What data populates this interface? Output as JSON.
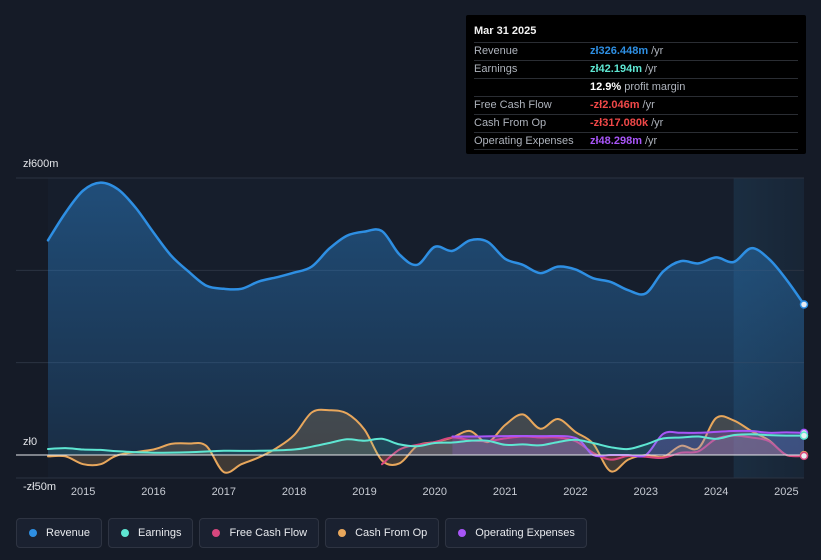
{
  "tooltip": {
    "date": "Mar 31 2025",
    "rows": [
      {
        "label": "Revenue",
        "value": "zł326.448m",
        "unit": "/yr",
        "color": "#2e8fe3"
      },
      {
        "label": "Earnings",
        "value": "zł42.194m",
        "unit": "/yr",
        "color": "#5ee6d2"
      },
      {
        "label": "",
        "value": "12.9%",
        "unit": "profit margin",
        "color": "#ffffff"
      },
      {
        "label": "Free Cash Flow",
        "value": "-zł2.046m",
        "unit": "/yr",
        "color": "#f04848"
      },
      {
        "label": "Cash From Op",
        "value": "-zł317.080k",
        "unit": "/yr",
        "color": "#f04848"
      },
      {
        "label": "Operating Expenses",
        "value": "zł48.298m",
        "unit": "/yr",
        "color": "#a855f7"
      }
    ]
  },
  "legend": [
    {
      "label": "Revenue",
      "color": "#2e8fe3"
    },
    {
      "label": "Earnings",
      "color": "#5ee6d2"
    },
    {
      "label": "Free Cash Flow",
      "color": "#d6477e"
    },
    {
      "label": "Cash From Op",
      "color": "#e8a75c"
    },
    {
      "label": "Operating Expenses",
      "color": "#a855f7"
    }
  ],
  "chart_data": {
    "type": "area",
    "title": "",
    "xlabel": "",
    "ylabel": "",
    "ylim": [
      -50,
      600
    ],
    "y_tick_labels": [
      "zł600m",
      "zł0",
      "-zł50m"
    ],
    "y_ticks": [
      600,
      0,
      -50
    ],
    "x_tick_labels": [
      "2015",
      "2016",
      "2017",
      "2018",
      "2019",
      "2020",
      "2021",
      "2022",
      "2023",
      "2024",
      "2025"
    ],
    "x_ticks": [
      2015,
      2016,
      2017,
      2018,
      2019,
      2020,
      2021,
      2022,
      2023,
      2024,
      2025
    ],
    "xlim": [
      2014.5,
      2025.25
    ],
    "highlight_start": 2024.25,
    "series": [
      {
        "name": "Revenue",
        "color": "#2e8fe3",
        "points": [
          [
            2014.5,
            465
          ],
          [
            2014.75,
            525
          ],
          [
            2015,
            573
          ],
          [
            2015.25,
            590
          ],
          [
            2015.5,
            575
          ],
          [
            2015.75,
            535
          ],
          [
            2016,
            482
          ],
          [
            2016.25,
            432
          ],
          [
            2016.5,
            397
          ],
          [
            2016.75,
            367
          ],
          [
            2017,
            360
          ],
          [
            2017.25,
            360
          ],
          [
            2017.5,
            376
          ],
          [
            2017.75,
            385
          ],
          [
            2018,
            395
          ],
          [
            2018.25,
            408
          ],
          [
            2018.5,
            447
          ],
          [
            2018.75,
            475
          ],
          [
            2019,
            484
          ],
          [
            2019.25,
            485
          ],
          [
            2019.5,
            434
          ],
          [
            2019.75,
            412
          ],
          [
            2020,
            451
          ],
          [
            2020.25,
            442
          ],
          [
            2020.5,
            465
          ],
          [
            2020.75,
            462
          ],
          [
            2021,
            425
          ],
          [
            2021.25,
            412
          ],
          [
            2021.5,
            394
          ],
          [
            2021.75,
            408
          ],
          [
            2022,
            402
          ],
          [
            2022.25,
            383
          ],
          [
            2022.5,
            375
          ],
          [
            2022.75,
            357
          ],
          [
            2023,
            350
          ],
          [
            2023.25,
            398
          ],
          [
            2023.5,
            420
          ],
          [
            2023.75,
            415
          ],
          [
            2024,
            428
          ],
          [
            2024.25,
            418
          ],
          [
            2024.5,
            448
          ],
          [
            2024.75,
            425
          ],
          [
            2025,
            380
          ],
          [
            2025.25,
            326
          ]
        ]
      },
      {
        "name": "Earnings",
        "color": "#5ee6d2",
        "points": [
          [
            2014.5,
            13
          ],
          [
            2014.75,
            15
          ],
          [
            2015,
            12
          ],
          [
            2015.25,
            11
          ],
          [
            2015.5,
            8
          ],
          [
            2016,
            5
          ],
          [
            2016.5,
            6
          ],
          [
            2017,
            9
          ],
          [
            2017.5,
            9
          ],
          [
            2018,
            12
          ],
          [
            2018.25,
            18
          ],
          [
            2018.5,
            26
          ],
          [
            2018.75,
            34
          ],
          [
            2019,
            31
          ],
          [
            2019.25,
            35
          ],
          [
            2019.5,
            23
          ],
          [
            2019.75,
            19
          ],
          [
            2020,
            26
          ],
          [
            2020.25,
            27
          ],
          [
            2020.5,
            31
          ],
          [
            2020.75,
            31
          ],
          [
            2021,
            22
          ],
          [
            2021.25,
            23
          ],
          [
            2021.5,
            21
          ],
          [
            2021.75,
            28
          ],
          [
            2022,
            33
          ],
          [
            2022.25,
            26
          ],
          [
            2022.5,
            17
          ],
          [
            2022.75,
            13
          ],
          [
            2023,
            23
          ],
          [
            2023.25,
            36
          ],
          [
            2023.5,
            38
          ],
          [
            2023.75,
            40
          ],
          [
            2024,
            35
          ],
          [
            2024.25,
            43
          ],
          [
            2024.5,
            45
          ],
          [
            2024.75,
            43
          ],
          [
            2025,
            42
          ],
          [
            2025.25,
            42
          ]
        ]
      },
      {
        "name": "Free Cash Flow",
        "color": "#d6477e",
        "points": [
          [
            2019.25,
            -20
          ],
          [
            2019.5,
            12
          ],
          [
            2019.75,
            22
          ],
          [
            2020,
            28
          ],
          [
            2020.25,
            38
          ],
          [
            2020.5,
            32
          ],
          [
            2020.75,
            30
          ],
          [
            2021,
            36
          ],
          [
            2021.25,
            40
          ],
          [
            2021.5,
            38
          ],
          [
            2021.75,
            38
          ],
          [
            2022,
            30
          ],
          [
            2022.25,
            5
          ],
          [
            2022.5,
            -10
          ],
          [
            2022.75,
            -2
          ],
          [
            2023,
            -4
          ],
          [
            2023.25,
            -6
          ],
          [
            2023.5,
            5
          ],
          [
            2023.75,
            8
          ],
          [
            2024,
            35
          ],
          [
            2024.25,
            42
          ],
          [
            2024.5,
            38
          ],
          [
            2024.75,
            30
          ],
          [
            2025,
            0
          ],
          [
            2025.25,
            -2
          ]
        ]
      },
      {
        "name": "Cash From Op",
        "color": "#e8a75c",
        "points": [
          [
            2014.5,
            -3
          ],
          [
            2014.75,
            -3
          ],
          [
            2015,
            -20
          ],
          [
            2015.25,
            -20
          ],
          [
            2015.5,
            0
          ],
          [
            2016,
            12
          ],
          [
            2016.25,
            24
          ],
          [
            2016.5,
            25
          ],
          [
            2016.75,
            20
          ],
          [
            2017,
            -37
          ],
          [
            2017.25,
            -20
          ],
          [
            2017.5,
            -5
          ],
          [
            2017.75,
            15
          ],
          [
            2018,
            43
          ],
          [
            2018.25,
            92
          ],
          [
            2018.5,
            97
          ],
          [
            2018.75,
            90
          ],
          [
            2019,
            55
          ],
          [
            2019.25,
            -12
          ],
          [
            2019.5,
            -18
          ],
          [
            2019.75,
            20
          ],
          [
            2020,
            28
          ],
          [
            2020.25,
            38
          ],
          [
            2020.5,
            52
          ],
          [
            2020.75,
            28
          ],
          [
            2021,
            65
          ],
          [
            2021.25,
            88
          ],
          [
            2021.5,
            57
          ],
          [
            2021.75,
            78
          ],
          [
            2022,
            50
          ],
          [
            2022.25,
            25
          ],
          [
            2022.5,
            -35
          ],
          [
            2022.75,
            -10
          ],
          [
            2023,
            0
          ],
          [
            2023.25,
            -4
          ],
          [
            2023.5,
            20
          ],
          [
            2023.75,
            15
          ],
          [
            2024,
            80
          ],
          [
            2024.25,
            75
          ],
          [
            2024.5,
            52
          ],
          [
            2024.75,
            32
          ],
          [
            2025,
            0
          ],
          [
            2025.25,
            -0.3
          ]
        ]
      },
      {
        "name": "Operating Expenses",
        "color": "#a855f7",
        "points": [
          [
            2020.25,
            40
          ],
          [
            2020.5,
            40
          ],
          [
            2021,
            41
          ],
          [
            2021.5,
            41
          ],
          [
            2022,
            37
          ],
          [
            2022.25,
            0
          ],
          [
            2022.5,
            0
          ],
          [
            2022.75,
            0
          ],
          [
            2023,
            0
          ],
          [
            2023.25,
            46
          ],
          [
            2023.5,
            48
          ],
          [
            2023.75,
            48
          ],
          [
            2024,
            50
          ],
          [
            2024.25,
            52
          ],
          [
            2024.5,
            52
          ],
          [
            2024.75,
            48
          ],
          [
            2025,
            49
          ],
          [
            2025.25,
            48
          ]
        ]
      }
    ]
  }
}
